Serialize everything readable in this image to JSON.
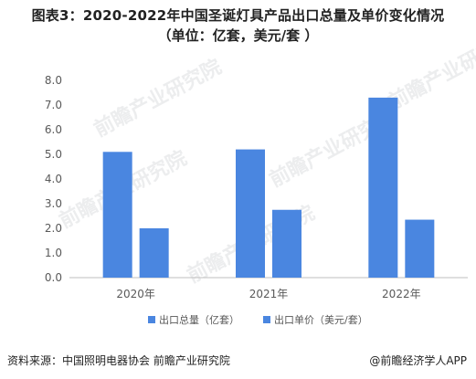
{
  "title_line1": "图表3：2020-2022年中国圣诞灯具产品出口总量及单价变化情况",
  "title_line2": "（单位：亿套，美元/套 ）",
  "source": "资料来源：中国照明电器协会 前瞻产业研究院",
  "brand": "@前瞻经济学人APP",
  "watermark_text": "前瞻产业研究院",
  "colors": {
    "bar": "#4a86e0",
    "axis": "#bfbfbf",
    "grid": "#e6e6e6",
    "text": "#595959"
  },
  "chart_data": {
    "type": "bar",
    "categories": [
      "2020年",
      "2021年",
      "2022年"
    ],
    "series": [
      {
        "name": "出口总量（亿套）",
        "values": [
          5.1,
          5.2,
          7.3
        ]
      },
      {
        "name": "出口单价（美元/套）",
        "values": [
          2.0,
          2.75,
          2.35
        ]
      }
    ],
    "ylim": [
      0,
      8
    ],
    "yticks": [
      "0.0",
      "1.0",
      "2.0",
      "3.0",
      "4.0",
      "5.0",
      "6.0",
      "7.0",
      "8.0"
    ],
    "grid": false,
    "legend": "bottom"
  }
}
